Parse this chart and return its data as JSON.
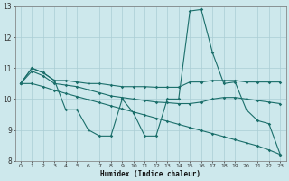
{
  "xlabel": "Humidex (Indice chaleur)",
  "bg_color": "#cde8ec",
  "line_color": "#1a6e6a",
  "grid_color": "#aacdd4",
  "xlim": [
    -0.5,
    23.5
  ],
  "ylim": [
    8,
    13
  ],
  "yticks": [
    8,
    9,
    10,
    11,
    12,
    13
  ],
  "xticks": [
    0,
    1,
    2,
    3,
    4,
    5,
    6,
    7,
    8,
    9,
    10,
    11,
    12,
    13,
    14,
    15,
    16,
    17,
    18,
    19,
    20,
    21,
    22,
    23
  ],
  "curves": [
    {
      "x": [
        0,
        1,
        2,
        3,
        4,
        5,
        6,
        7,
        8,
        9,
        10,
        11,
        12,
        13,
        14,
        15,
        16,
        17,
        18,
        19,
        20,
        21,
        22,
        23
      ],
      "y": [
        10.5,
        11.0,
        10.85,
        10.6,
        9.65,
        9.65,
        9.0,
        8.8,
        8.8,
        10.0,
        9.55,
        8.8,
        8.8,
        10.0,
        10.0,
        12.85,
        12.9,
        11.5,
        10.5,
        10.55,
        9.65,
        9.3,
        9.2,
        8.2
      ]
    },
    {
      "x": [
        0,
        1,
        2,
        3,
        4,
        5,
        6,
        7,
        8,
        9,
        10,
        11,
        12,
        13,
        14,
        15,
        16,
        17,
        18,
        19,
        20,
        21,
        22,
        23
      ],
      "y": [
        10.5,
        11.0,
        10.85,
        10.6,
        10.6,
        10.55,
        10.5,
        10.5,
        10.45,
        10.4,
        10.4,
        10.4,
        10.38,
        10.38,
        10.38,
        10.55,
        10.55,
        10.6,
        10.6,
        10.6,
        10.55,
        10.55,
        10.55,
        10.55
      ]
    },
    {
      "x": [
        0,
        1,
        2,
        3,
        4,
        5,
        6,
        7,
        8,
        9,
        10,
        11,
        12,
        13,
        14,
        15,
        16,
        17,
        18,
        19,
        20,
        21,
        22,
        23
      ],
      "y": [
        10.5,
        10.9,
        10.75,
        10.5,
        10.45,
        10.4,
        10.3,
        10.2,
        10.1,
        10.05,
        10.0,
        9.95,
        9.9,
        9.88,
        9.85,
        9.85,
        9.9,
        10.0,
        10.05,
        10.05,
        10.0,
        9.95,
        9.9,
        9.85
      ]
    },
    {
      "x": [
        0,
        1,
        2,
        3,
        4,
        5,
        6,
        7,
        8,
        9,
        10,
        11,
        12,
        13,
        14,
        15,
        16,
        17,
        18,
        19,
        20,
        21,
        22,
        23
      ],
      "y": [
        10.5,
        10.5,
        10.4,
        10.28,
        10.18,
        10.08,
        9.98,
        9.88,
        9.78,
        9.68,
        9.58,
        9.48,
        9.38,
        9.28,
        9.18,
        9.08,
        8.98,
        8.88,
        8.78,
        8.68,
        8.58,
        8.48,
        8.35,
        8.2
      ]
    }
  ]
}
